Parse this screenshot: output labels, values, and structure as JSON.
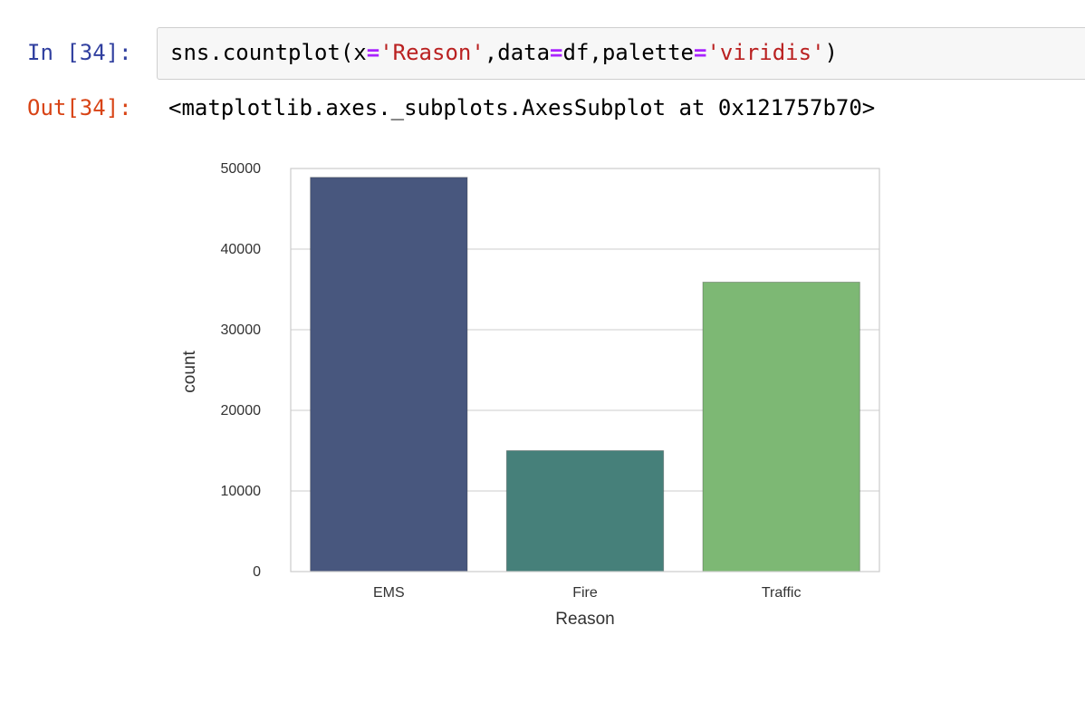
{
  "cell": {
    "in_prompt": "In [34]:",
    "out_prompt": "Out[34]:",
    "code": {
      "call_open": "sns.countplot(",
      "arg_x_name": "x",
      "eq1": "=",
      "arg_x_value": "'Reason'",
      "sep1": ",",
      "arg_data_name": "data",
      "eq2": "=",
      "arg_data_value": "df",
      "sep2": ",",
      "arg_palette_name": "palette",
      "eq3": "=",
      "arg_palette_value": "'viridis'",
      "call_close": ")"
    },
    "output_text": "<matplotlib.axes._subplots.AxesSubplot at 0x121757b70>"
  },
  "colors": {
    "in_prompt": "#303f9f",
    "out_prompt": "#d84315",
    "string": "#ba2121",
    "operator": "#aa22ff"
  },
  "chart_data": {
    "type": "bar",
    "categories": [
      "EMS",
      "Fire",
      "Traffic"
    ],
    "values": [
      48900,
      15000,
      35900
    ],
    "colors": [
      "#48577e",
      "#46807a",
      "#7db874"
    ],
    "xlabel": "Reason",
    "ylabel": "count",
    "ylim": [
      0,
      50000
    ],
    "yticks": [
      0,
      10000,
      20000,
      30000,
      40000,
      50000
    ],
    "ytick_labels": [
      "0",
      "10000",
      "20000",
      "30000",
      "40000",
      "50000"
    ],
    "grid": true,
    "title": ""
  }
}
